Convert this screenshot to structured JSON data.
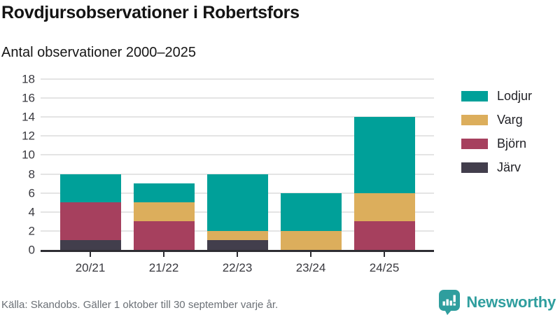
{
  "title": "Rovdjursobservationer i Robertsfors",
  "subtitle": "Antal observationer 2000–2025",
  "source": "Källa: Skandobs. Gäller 1 oktober till 30 september varje år.",
  "logo": {
    "name": "Newsworthy",
    "brand_color": "#2f9e9e"
  },
  "colors": {
    "axis": "#2e2d33",
    "gridline": "#e4e4e4",
    "text_dark": "#141414",
    "text_muted": "#6b7076"
  },
  "chart_data": {
    "type": "bar",
    "stacked": true,
    "title": "Rovdjursobservationer i Robertsfors",
    "subtitle": "Antal observationer 2000–2025",
    "categories": [
      "20/21",
      "21/22",
      "22/23",
      "23/24",
      "24/25"
    ],
    "series": [
      {
        "name": "Lodjur",
        "color": "#00a099",
        "values": [
          3,
          2,
          6,
          4,
          8
        ]
      },
      {
        "name": "Varg",
        "color": "#dcae5c",
        "values": [
          0,
          2,
          1,
          2,
          3
        ]
      },
      {
        "name": "Björn",
        "color": "#a6405e",
        "values": [
          4,
          3,
          0,
          0,
          3
        ]
      },
      {
        "name": "Järv",
        "color": "#423e4c",
        "values": [
          1,
          0,
          1,
          0,
          0
        ]
      }
    ],
    "totals": [
      8,
      7,
      8,
      6,
      14
    ],
    "stack_order_bottom_to_top": [
      "Järv",
      "Björn",
      "Varg",
      "Lodjur"
    ],
    "ylim": [
      0,
      18
    ],
    "yticks": [
      0,
      2,
      4,
      6,
      8,
      10,
      12,
      14,
      16,
      18
    ],
    "xlabel": "",
    "ylabel": "",
    "grid": true,
    "legend_position": "right"
  }
}
